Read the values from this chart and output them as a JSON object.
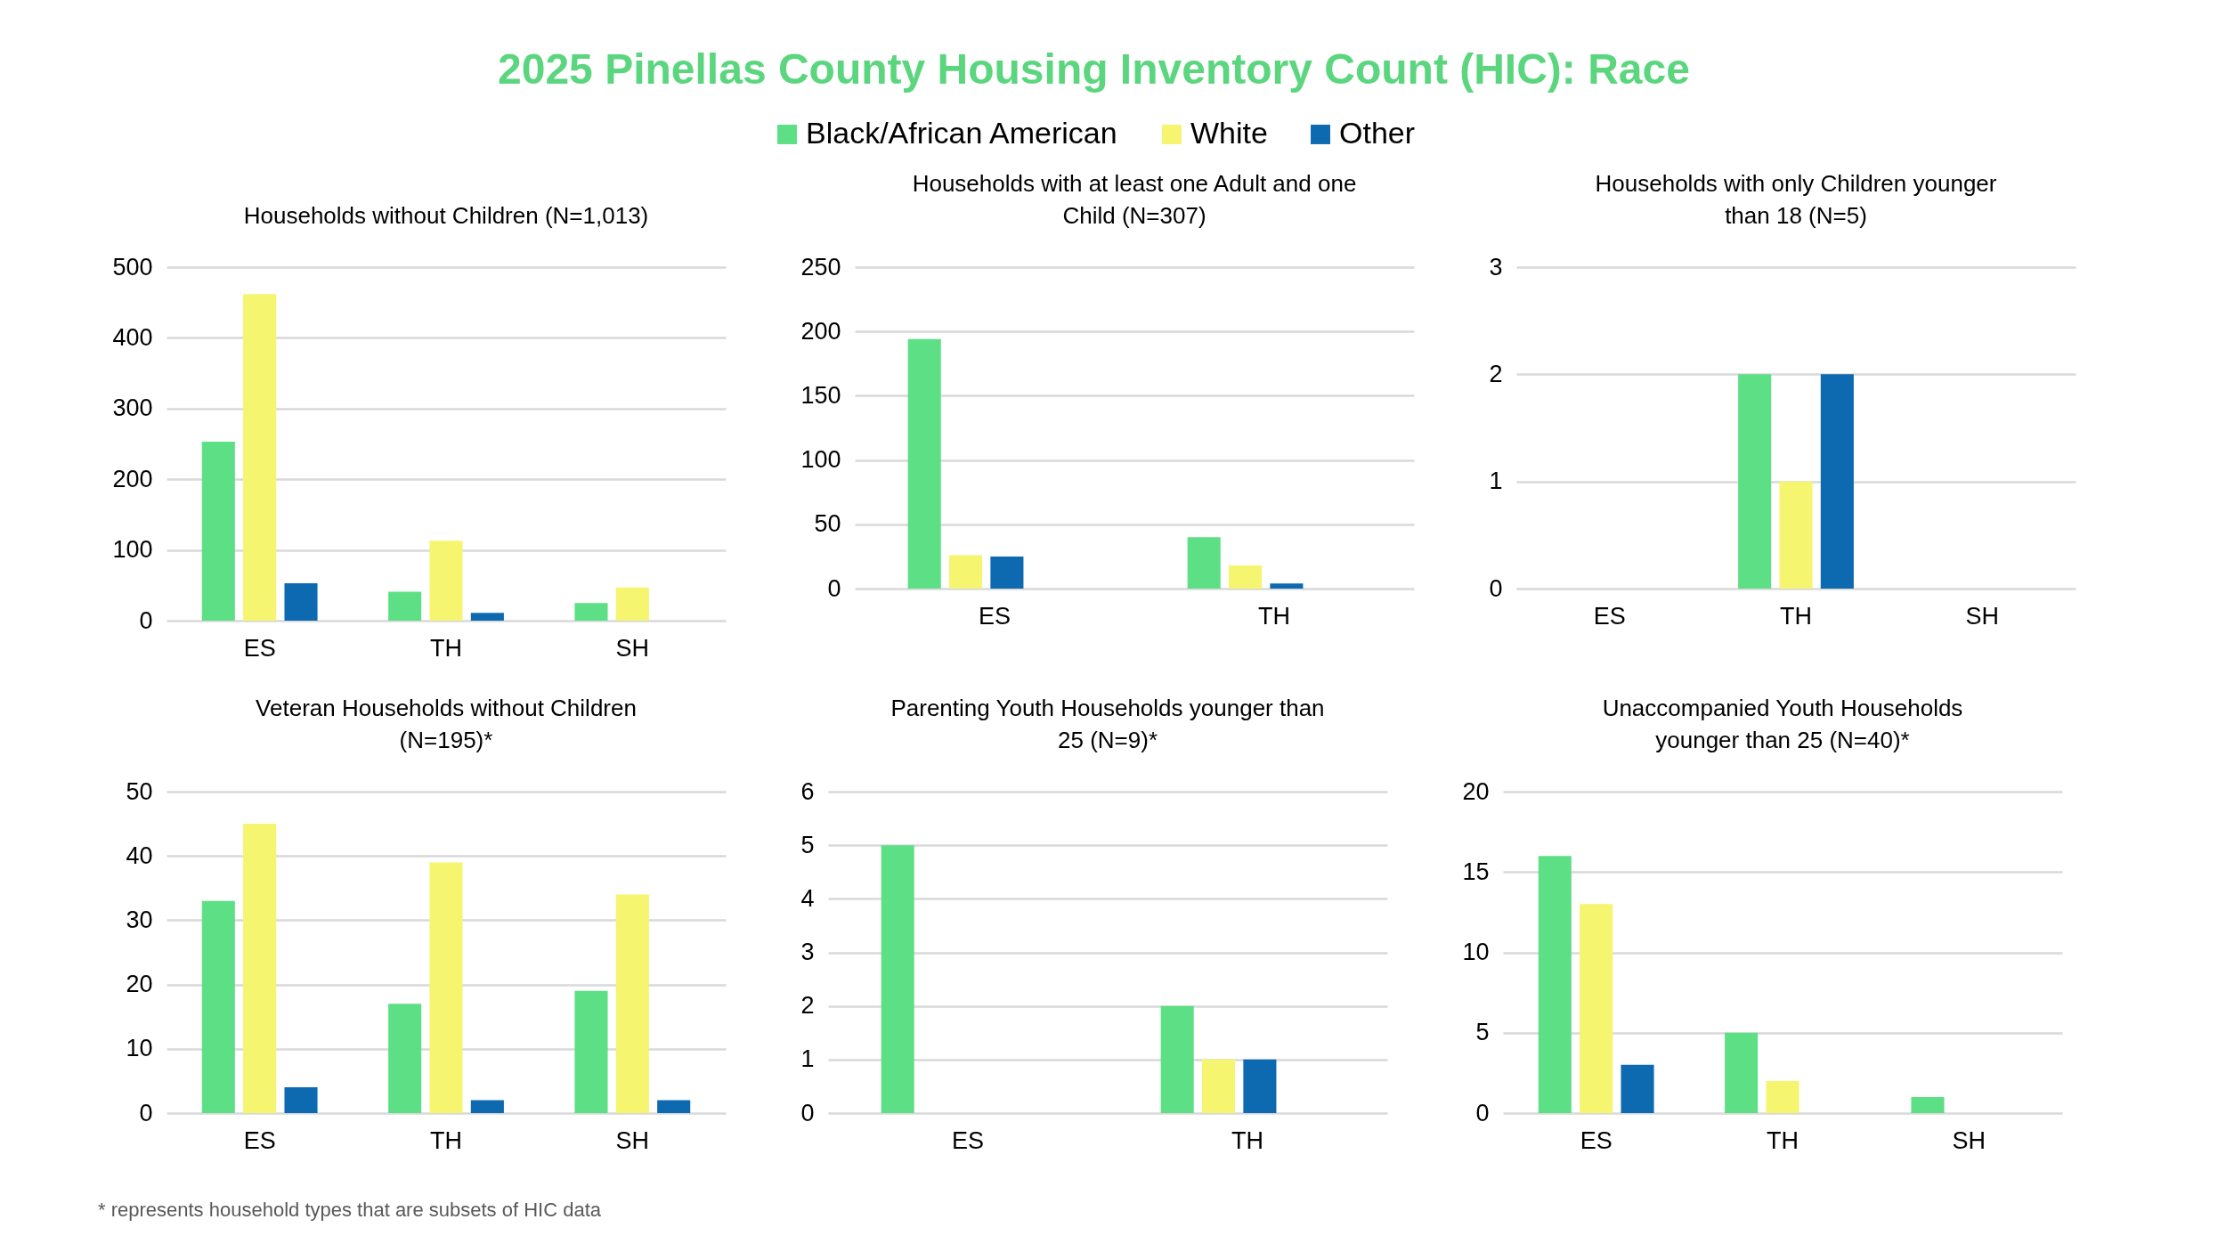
{
  "chart_data": [
    {
      "type": "other",
      "title": "2025 Pinellas County Housing Inventory Count (HIC): Race",
      "annotations": [
        "* represents household types that are subsets of HIC data"
      ]
    },
    {
      "type": "bar",
      "title": "Households without Children (N=1,013)",
      "categories": [
        "ES",
        "TH",
        "SH"
      ],
      "series": [
        {
          "name": "Black/African American",
          "color": "#5ddf85",
          "values": [
            253,
            41,
            25
          ]
        },
        {
          "name": "White",
          "color": "#f5f56f",
          "values": [
            462,
            113,
            47
          ]
        },
        {
          "name": "Other",
          "color": "#0d69b0",
          "values": [
            53,
            11,
            0
          ]
        }
      ],
      "ylim": [
        0,
        500
      ],
      "yticks": [
        0,
        100,
        200,
        300,
        400,
        500
      ],
      "grid": "y",
      "legend": "top"
    },
    {
      "type": "bar",
      "title": "Households with at least one Adult and one\nChild (N=307)",
      "categories": [
        "ES",
        "TH"
      ],
      "series": [
        {
          "name": "Black/African American",
          "color": "#5ddf85",
          "values": [
            194,
            40
          ]
        },
        {
          "name": "White",
          "color": "#f5f56f",
          "values": [
            26,
            18
          ]
        },
        {
          "name": "Other",
          "color": "#0d69b0",
          "values": [
            25,
            4
          ]
        }
      ],
      "ylim": [
        0,
        250
      ],
      "yticks": [
        0,
        50,
        100,
        150,
        200,
        250
      ],
      "grid": "y",
      "legend": "top"
    },
    {
      "type": "bar",
      "title": "Households with only Children younger\nthan 18 (N=5)",
      "categories": [
        "ES",
        "TH",
        "SH"
      ],
      "series": [
        {
          "name": "Black/African American",
          "color": "#5ddf85",
          "values": [
            0,
            2,
            0
          ]
        },
        {
          "name": "White",
          "color": "#f5f56f",
          "values": [
            0,
            1,
            0
          ]
        },
        {
          "name": "Other",
          "color": "#0d69b0",
          "values": [
            0,
            2,
            0
          ]
        }
      ],
      "ylim": [
        0,
        3
      ],
      "yticks": [
        0,
        1,
        2,
        3
      ],
      "grid": "y",
      "legend": "top"
    },
    {
      "type": "bar",
      "title": "Veteran Households without Children\n(N=195)*",
      "categories": [
        "ES",
        "TH",
        "SH"
      ],
      "series": [
        {
          "name": "Black/African American",
          "color": "#5ddf85",
          "values": [
            33,
            17,
            19
          ]
        },
        {
          "name": "White",
          "color": "#f5f56f",
          "values": [
            45,
            39,
            34
          ]
        },
        {
          "name": "Other",
          "color": "#0d69b0",
          "values": [
            4,
            2,
            2
          ]
        }
      ],
      "ylim": [
        0,
        50
      ],
      "yticks": [
        0,
        10,
        20,
        30,
        40,
        50
      ],
      "grid": "y",
      "legend": "top"
    },
    {
      "type": "bar",
      "title": "Parenting Youth Households younger than\n25 (N=9)*",
      "categories": [
        "ES",
        "TH"
      ],
      "series": [
        {
          "name": "Black/African American",
          "color": "#5ddf85",
          "values": [
            5,
            2
          ]
        },
        {
          "name": "White",
          "color": "#f5f56f",
          "values": [
            0,
            1
          ]
        },
        {
          "name": "Other",
          "color": "#0d69b0",
          "values": [
            0,
            1
          ]
        }
      ],
      "ylim": [
        0,
        6
      ],
      "yticks": [
        0,
        1,
        2,
        3,
        4,
        5,
        6
      ],
      "grid": "y",
      "legend": "top"
    },
    {
      "type": "bar",
      "title": "Unaccompanied Youth Households\nyounger than 25 (N=40)*",
      "categories": [
        "ES",
        "TH",
        "SH"
      ],
      "series": [
        {
          "name": "Black/African American",
          "color": "#5ddf85",
          "values": [
            16,
            5,
            1
          ]
        },
        {
          "name": "White",
          "color": "#f5f56f",
          "values": [
            13,
            2,
            0
          ]
        },
        {
          "name": "Other",
          "color": "#0d69b0",
          "values": [
            3,
            0,
            0
          ]
        }
      ],
      "ylim": [
        0,
        20
      ],
      "yticks": [
        0,
        5,
        10,
        15,
        20
      ],
      "grid": "y",
      "legend": "top"
    }
  ]
}
